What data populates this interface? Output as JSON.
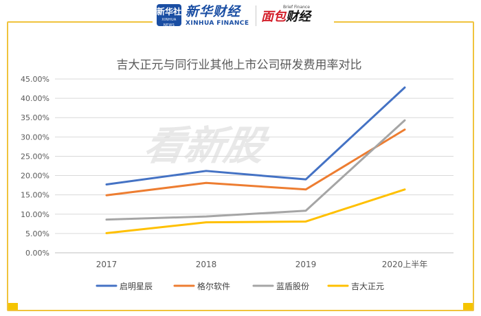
{
  "header": {
    "xinhua_badge_cn": "新华社",
    "xinhua_badge_en": "XINHUA NEWS",
    "xinhua_finance_cn": "新华财经",
    "xinhua_finance_en": "XINHUA FINANCE",
    "brief_finance_en": "Brief Finance",
    "brief_finance_cn_red": "面包",
    "brief_finance_cn_black": "财经"
  },
  "watermark": "看新股",
  "colors": {
    "frame": "#f0c33c",
    "series": [
      "#4472c4",
      "#ed7d31",
      "#a5a5a5",
      "#ffc000"
    ]
  },
  "chart_data": {
    "type": "line",
    "title": "吉大正元与同行业其他上市公司研发费用率对比",
    "categories": [
      "2017",
      "2018",
      "2019",
      "2020上半年"
    ],
    "series": [
      {
        "name": "启明星辰",
        "values": [
          17.7,
          21.2,
          19.0,
          42.8
        ]
      },
      {
        "name": "格尔软件",
        "values": [
          14.9,
          18.1,
          16.4,
          31.9
        ]
      },
      {
        "name": "蓝盾股份",
        "values": [
          8.6,
          9.4,
          10.9,
          34.3
        ]
      },
      {
        "name": "吉大正元",
        "values": [
          5.1,
          7.9,
          8.1,
          16.4
        ]
      }
    ],
    "ylim": [
      0,
      45
    ],
    "ytick_step": 5,
    "ytick_labels": [
      "0.00%",
      "5.00%",
      "10.00%",
      "15.00%",
      "20.00%",
      "25.00%",
      "30.00%",
      "35.00%",
      "40.00%",
      "45.00%"
    ],
    "grid": true,
    "legend": "bottom"
  }
}
